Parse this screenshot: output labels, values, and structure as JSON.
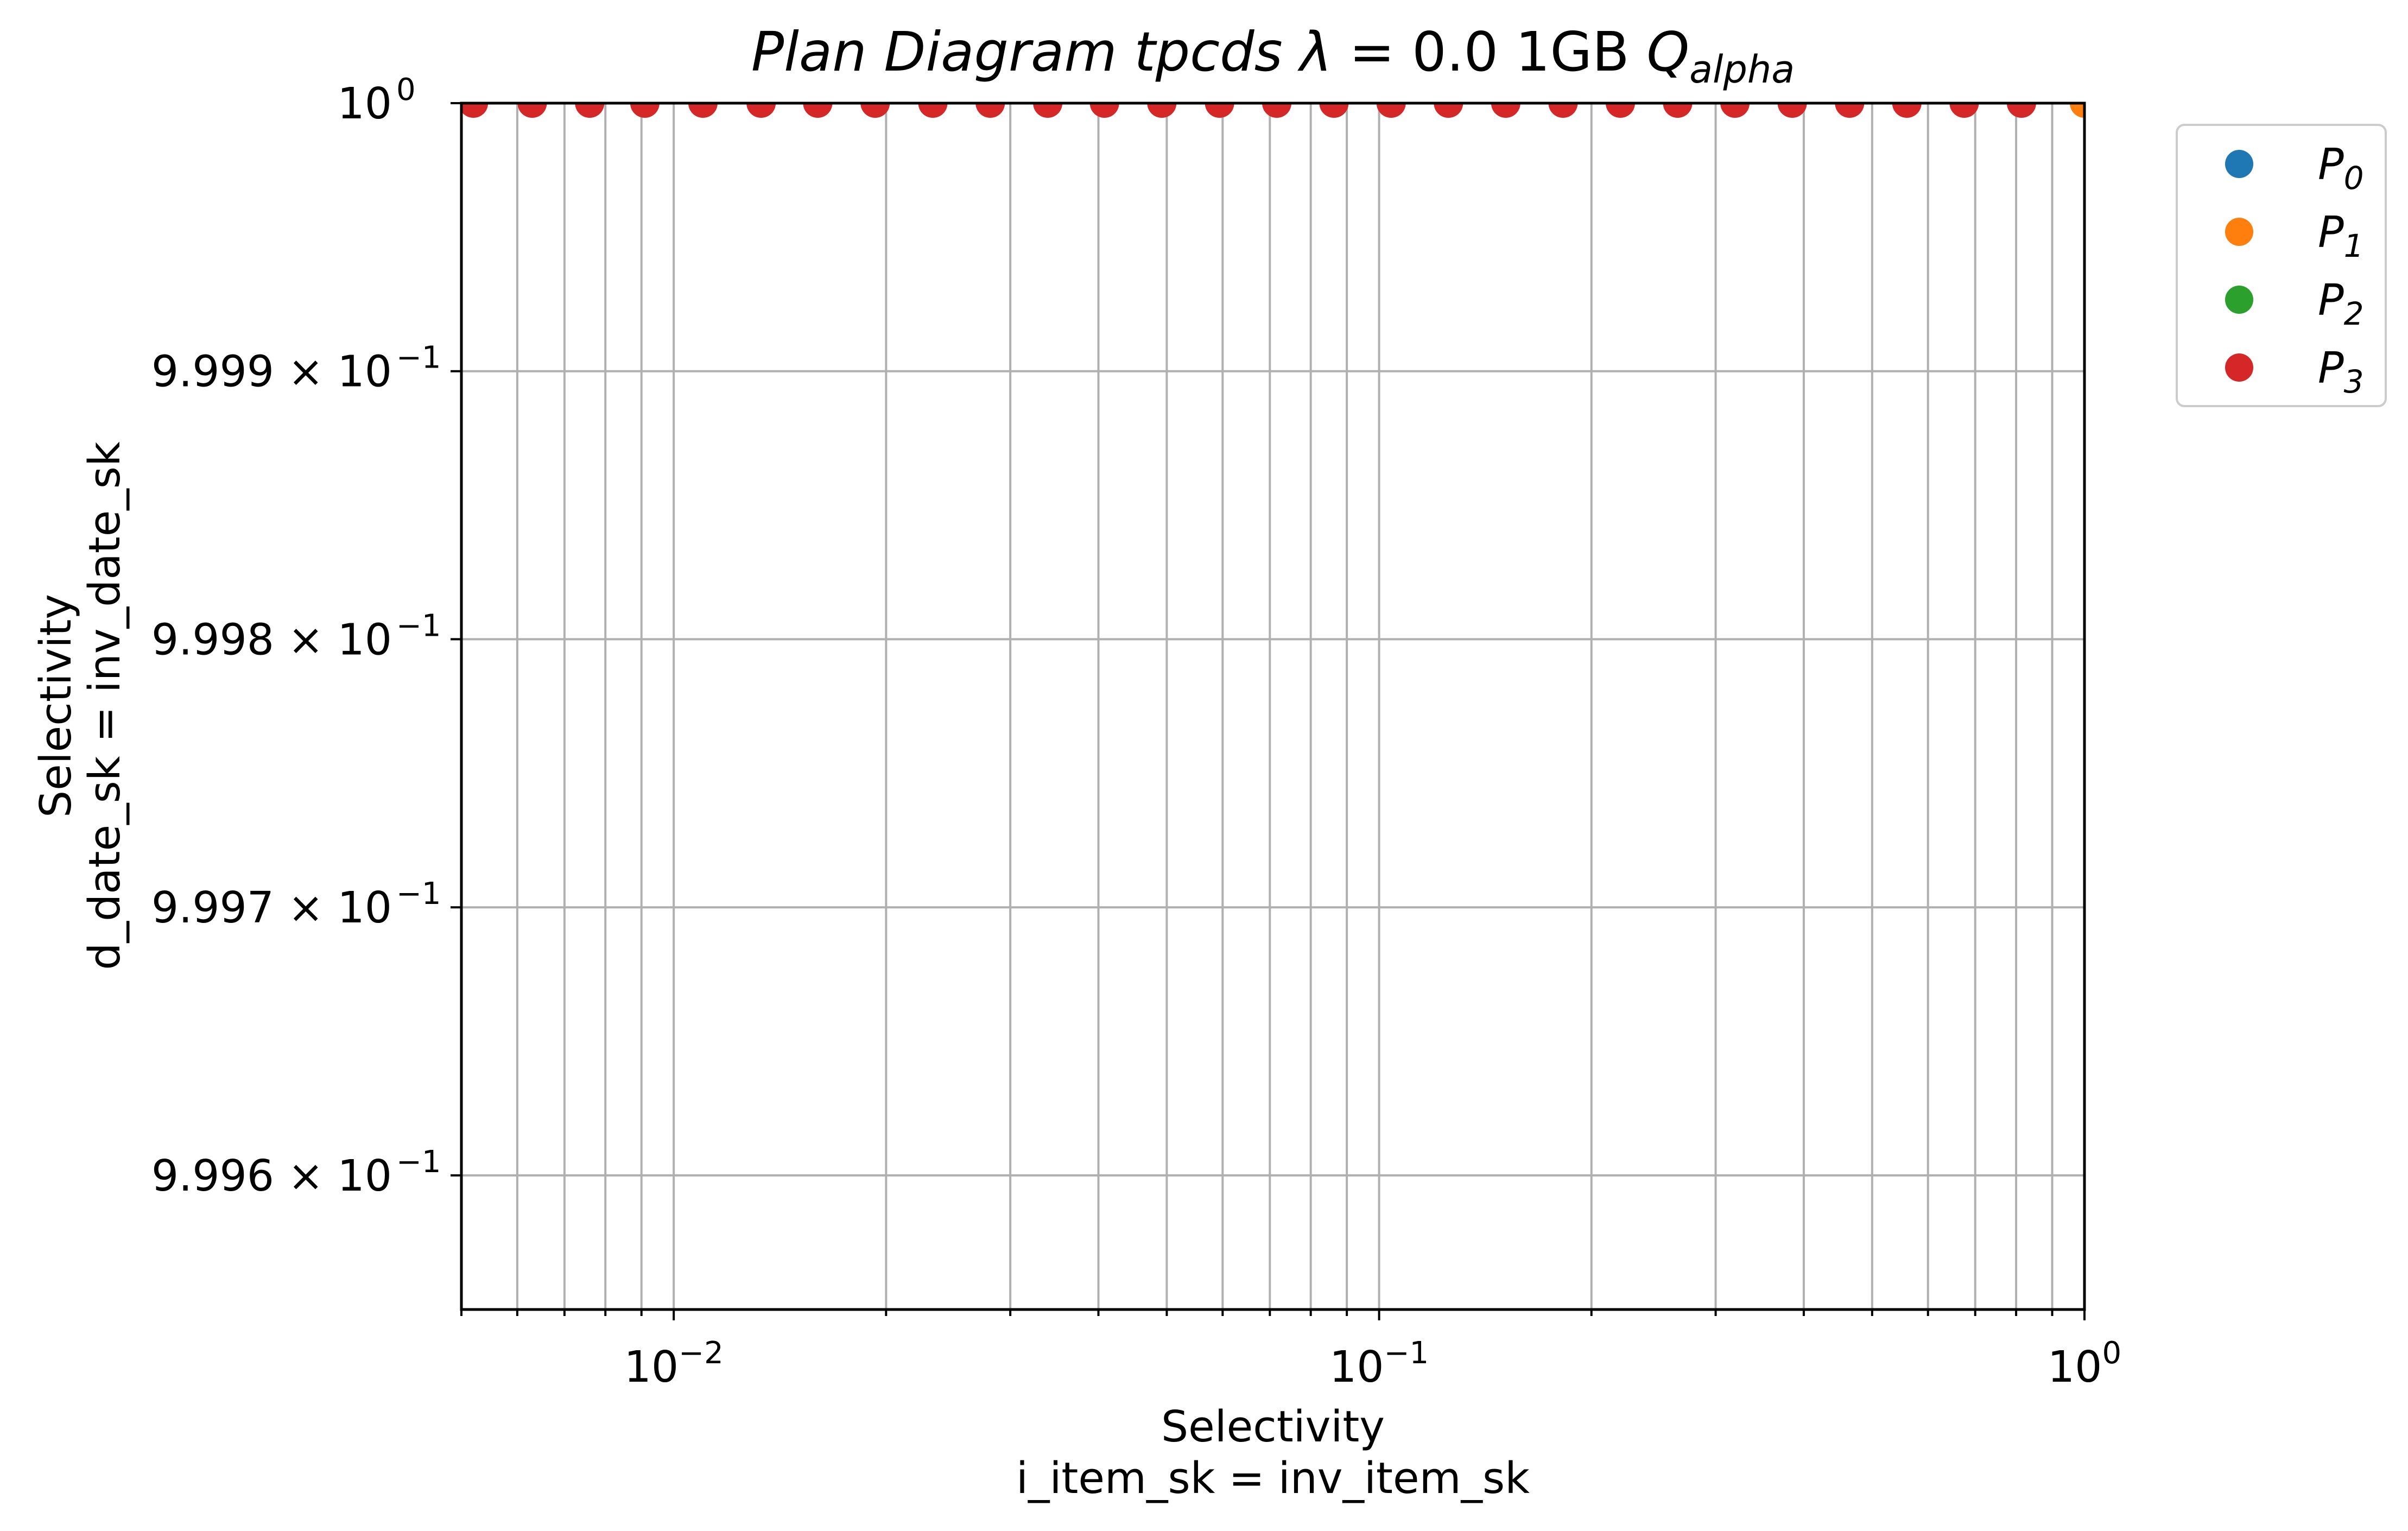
{
  "chart_data": {
    "type": "scatter",
    "title": {
      "prefix": "Plan Diagram tpcds ",
      "lambda": "λ",
      "eq": " = 0.0 1GB ",
      "q": "Q",
      "q_sub": "alpha"
    },
    "xlabel": [
      "Selectivity",
      "i_item_sk = inv_item_sk"
    ],
    "ylabel": [
      "Selectivity",
      "d_date_sk = inv_date_sk"
    ],
    "x_scale": "log",
    "y_scale": "log",
    "xlim": [
      0.005,
      1.0
    ],
    "ylim": [
      0.99955,
      1.0
    ],
    "grid": true,
    "x_ticks": [
      {
        "value": 0.01,
        "base": "10",
        "exp": "−2"
      },
      {
        "value": 0.1,
        "base": "10",
        "exp": "−1"
      },
      {
        "value": 1.0,
        "base": "10",
        "exp": "0"
      }
    ],
    "x_minor_ticks": [
      0.005,
      0.006,
      0.007,
      0.008,
      0.009,
      0.02,
      0.03,
      0.04,
      0.05,
      0.06,
      0.07,
      0.08,
      0.09,
      0.2,
      0.3,
      0.4,
      0.5,
      0.6,
      0.7,
      0.8,
      0.9
    ],
    "y_ticks": [
      {
        "value": 1.0,
        "label": "10",
        "exp": "0"
      },
      {
        "value": 0.9999,
        "label": "9.999 × 10",
        "exp": "−1"
      },
      {
        "value": 0.9998,
        "label": "9.998 × 10",
        "exp": "−1"
      },
      {
        "value": 0.9997,
        "label": "9.997 × 10",
        "exp": "−1"
      },
      {
        "value": 0.9996,
        "label": "9.996 × 10",
        "exp": "−1"
      }
    ],
    "legend": {
      "position": "outside-right-top",
      "entries": [
        {
          "name": "P",
          "sub": "0",
          "color": "#1f77b4"
        },
        {
          "name": "P",
          "sub": "1",
          "color": "#ff7f0e"
        },
        {
          "name": "P",
          "sub": "2",
          "color": "#2ca02c"
        },
        {
          "name": "P",
          "sub": "3",
          "color": "#d62728"
        }
      ]
    },
    "series": [
      {
        "plan": "P3",
        "color": "#d62728",
        "points": [
          {
            "x": 0.0052,
            "y": 1.0
          },
          {
            "x": 0.0063,
            "y": 1.0
          },
          {
            "x": 0.0076,
            "y": 1.0
          },
          {
            "x": 0.0091,
            "y": 1.0
          },
          {
            "x": 0.011,
            "y": 1.0
          },
          {
            "x": 0.0133,
            "y": 1.0
          },
          {
            "x": 0.016,
            "y": 1.0
          },
          {
            "x": 0.0193,
            "y": 1.0
          },
          {
            "x": 0.0233,
            "y": 1.0
          },
          {
            "x": 0.0281,
            "y": 1.0
          },
          {
            "x": 0.0339,
            "y": 1.0
          },
          {
            "x": 0.0408,
            "y": 1.0
          },
          {
            "x": 0.0492,
            "y": 1.0
          },
          {
            "x": 0.0594,
            "y": 1.0
          },
          {
            "x": 0.0716,
            "y": 1.0
          },
          {
            "x": 0.0863,
            "y": 1.0
          },
          {
            "x": 0.104,
            "y": 1.0
          },
          {
            "x": 0.1254,
            "y": 1.0
          },
          {
            "x": 0.1512,
            "y": 1.0
          },
          {
            "x": 0.1823,
            "y": 1.0
          },
          {
            "x": 0.2198,
            "y": 1.0
          },
          {
            "x": 0.265,
            "y": 1.0
          },
          {
            "x": 0.3195,
            "y": 1.0
          },
          {
            "x": 0.3852,
            "y": 1.0
          },
          {
            "x": 0.4645,
            "y": 1.0
          },
          {
            "x": 0.56,
            "y": 1.0
          },
          {
            "x": 0.6752,
            "y": 1.0
          },
          {
            "x": 0.8141,
            "y": 1.0
          }
        ]
      },
      {
        "plan": "P1",
        "color": "#ff7f0e",
        "points": [
          {
            "x": 1.0,
            "y": 1.0
          }
        ]
      }
    ]
  }
}
